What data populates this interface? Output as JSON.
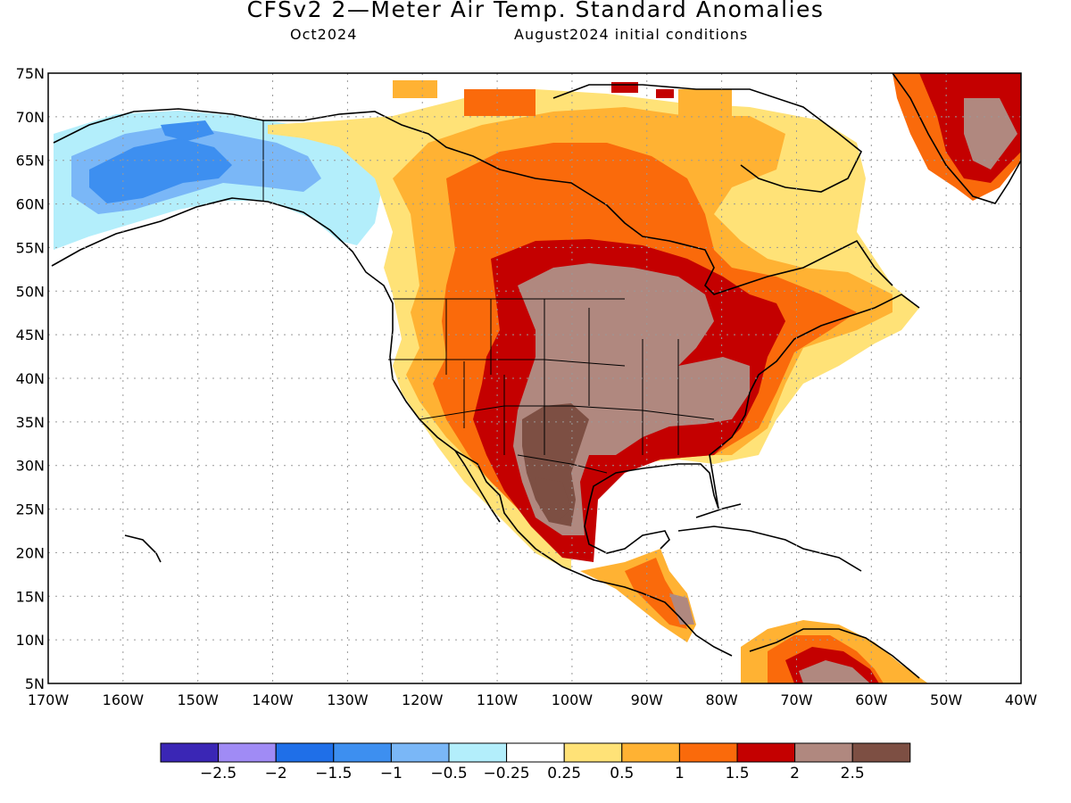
{
  "title": "CFSv2 2—Meter Air Temp. Standard Anomalies",
  "subtitle_left": "Oct2024",
  "subtitle_right": "August2024 initial conditions",
  "lat_labels": [
    "75N",
    "70N",
    "65N",
    "60N",
    "55N",
    "50N",
    "45N",
    "40N",
    "35N",
    "30N",
    "25N",
    "20N",
    "15N",
    "10N",
    "5N"
  ],
  "lon_labels": [
    "170W",
    "160W",
    "150W",
    "140W",
    "130W",
    "120W",
    "110W",
    "100W",
    "90W",
    "80W",
    "70W",
    "60W",
    "50W",
    "40W"
  ],
  "colorbar": {
    "colors": [
      "#3a26b5",
      "#a08bf5",
      "#1f6fe8",
      "#3d8ff0",
      "#7ab7f7",
      "#b3eefb",
      "#ffffff",
      "#ffe277",
      "#ffb233",
      "#fa6a0b",
      "#c40000",
      "#b0887f",
      "#7d4f43"
    ],
    "labels": [
      "−2.5",
      "−2",
      "−1.5",
      "−1",
      "−0.5",
      "−0.25",
      "0.25",
      "0.5",
      "1",
      "1.5",
      "2",
      "2.5"
    ]
  },
  "legend_colors": {
    "cold_deep": "#1f6fe8",
    "cold": "#3d8ff0",
    "cool": "#7ab7f7",
    "cool_light": "#b3eefb",
    "warm_light": "#ffe277",
    "warm": "#ffb233",
    "warm_orange": "#fa6a0b",
    "hot": "#c40000",
    "hot_brown": "#b0887f",
    "hot_dark": "#7d4f43"
  }
}
